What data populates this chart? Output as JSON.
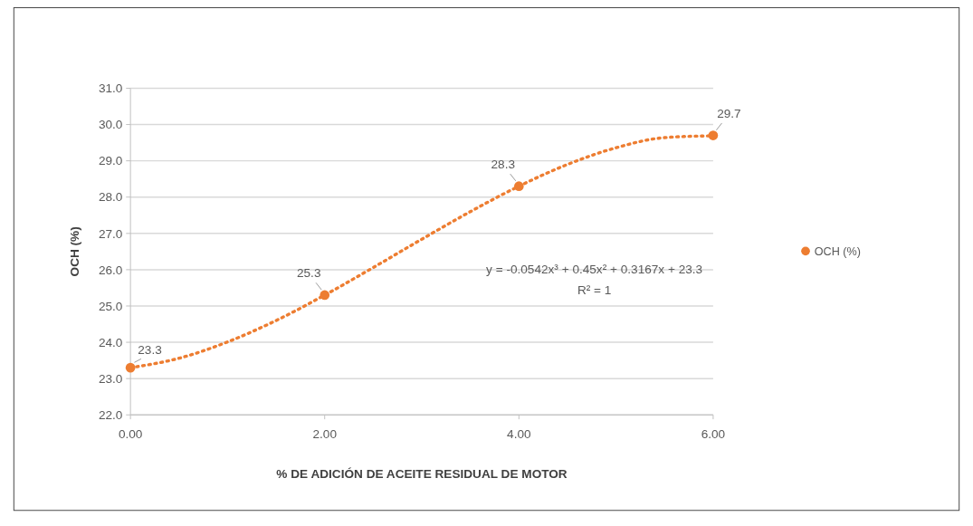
{
  "chart_data": {
    "type": "scatter",
    "xlabel": "% DE ADICIÓN DE ACEITE RESIDUAL DE MOTOR",
    "ylabel": "OCH (%)",
    "xlim": [
      0,
      6
    ],
    "xticks": [
      {
        "value": 0,
        "label": "0.00"
      },
      {
        "value": 2,
        "label": "2.00"
      },
      {
        "value": 4,
        "label": "4.00"
      },
      {
        "value": 6,
        "label": "6.00"
      }
    ],
    "ylim": [
      22,
      31
    ],
    "yticks": [
      {
        "value": 22,
        "label": "22.0"
      },
      {
        "value": 23,
        "label": "23.0"
      },
      {
        "value": 24,
        "label": "24.0"
      },
      {
        "value": 25,
        "label": "25.0"
      },
      {
        "value": 26,
        "label": "26.0"
      },
      {
        "value": 27,
        "label": "27.0"
      },
      {
        "value": 28,
        "label": "28.0"
      },
      {
        "value": 29,
        "label": "29.0"
      },
      {
        "value": 30,
        "label": "30.0"
      },
      {
        "value": 31,
        "label": "31.0"
      }
    ],
    "grid": "y",
    "legend": "right",
    "marker": "circle",
    "series": [
      {
        "name": "OCH (%)",
        "color": "#ed7d31",
        "x": [
          0,
          2,
          4,
          6
        ],
        "values": [
          23.3,
          25.3,
          28.3,
          29.7
        ],
        "value_labels": [
          "23.3",
          "25.3",
          "28.3",
          "29.7"
        ]
      },
      {
        "type": "line",
        "color": "#ed7d31",
        "line_style": "dotted",
        "marker": "none",
        "x": [
          0,
          0.5,
          1,
          1.5,
          2,
          2.5,
          3,
          3.5,
          4,
          4.5,
          5,
          5.5,
          6
        ],
        "values": [
          23.3,
          23.56,
          24.01,
          24.6,
          25.3,
          26.06,
          26.84,
          27.6,
          28.3,
          28.9,
          29.36,
          29.64,
          29.69
        ]
      }
    ],
    "annotations": [
      "y = -0.0542x³ + 0.45x² + 0.3167x + 23.3",
      "R² = 1"
    ]
  }
}
